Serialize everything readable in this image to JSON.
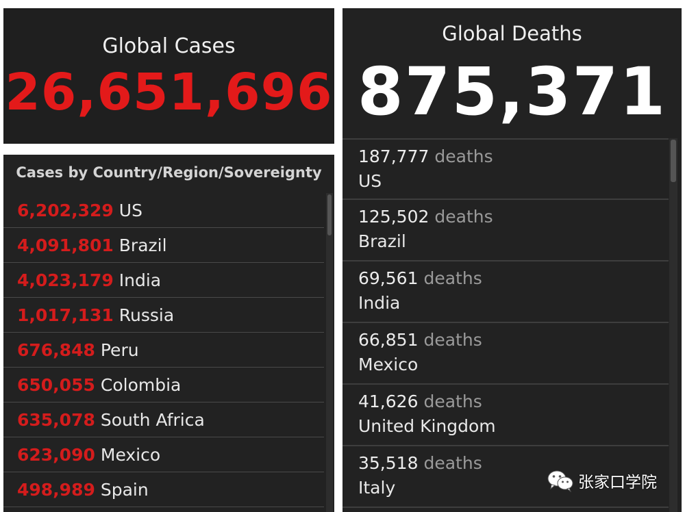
{
  "cases": {
    "title": "Global Cases",
    "total": "26,651,696",
    "list_header": "Cases by Country/Region/Sovereignty",
    "rows": [
      {
        "count": "6,202,329",
        "country": "US"
      },
      {
        "count": "4,091,801",
        "country": "Brazil"
      },
      {
        "count": "4,023,179",
        "country": "India"
      },
      {
        "count": "1,017,131",
        "country": "Russia"
      },
      {
        "count": "676,848",
        "country": "Peru"
      },
      {
        "count": "650,055",
        "country": "Colombia"
      },
      {
        "count": "635,078",
        "country": "South Africa"
      },
      {
        "count": "623,090",
        "country": "Mexico"
      },
      {
        "count": "498,989",
        "country": "Spain"
      }
    ]
  },
  "deaths": {
    "title": "Global Deaths",
    "total": "875,371",
    "rows": [
      {
        "count": "187,777",
        "unit": "deaths",
        "country": "US"
      },
      {
        "count": "125,502",
        "unit": "deaths",
        "country": "Brazil"
      },
      {
        "count": "69,561",
        "unit": "deaths",
        "country": "India"
      },
      {
        "count": "66,851",
        "unit": "deaths",
        "country": "Mexico"
      },
      {
        "count": "41,626",
        "unit": "deaths",
        "country": "United Kingdom"
      },
      {
        "count": "35,518",
        "unit": "deaths",
        "country": "Italy"
      }
    ]
  },
  "watermark": {
    "icon": "wechat-icon",
    "text": "张家口学院"
  },
  "colors": {
    "cases_accent": "#e31a1a",
    "panel_bg": "#222222",
    "deaths_total": "#ffffff",
    "muted_unit": "#9a9a9a"
  }
}
